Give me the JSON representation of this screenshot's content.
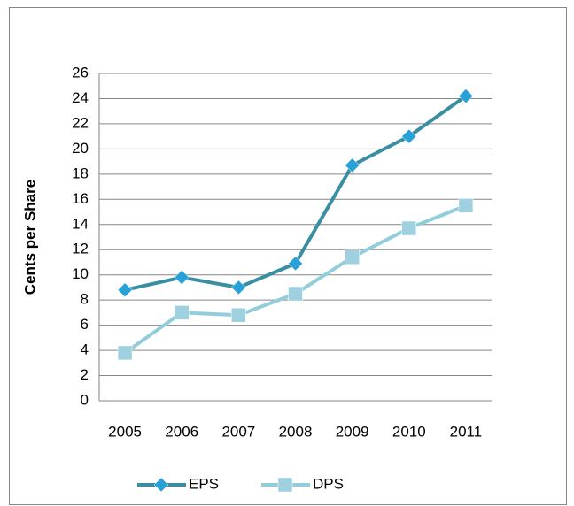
{
  "chart_data": {
    "type": "line",
    "ylabel": "Cents per Share",
    "categories": [
      "2005",
      "2006",
      "2007",
      "2008",
      "2009",
      "2010",
      "2011"
    ],
    "series": [
      {
        "name": "EPS",
        "color": "#3a8ea3",
        "marker_color": "#27a1d8",
        "marker": "diamond",
        "values": [
          8.8,
          9.8,
          9.0,
          10.9,
          18.7,
          21.0,
          24.2
        ]
      },
      {
        "name": "DPS",
        "color": "#92cddc",
        "marker_color": "#9fd0df",
        "marker": "square",
        "values": [
          3.8,
          7.0,
          6.8,
          8.5,
          11.4,
          13.7,
          15.5
        ]
      }
    ],
    "ylim": [
      0,
      26
    ],
    "yticks": [
      0,
      2,
      4,
      6,
      8,
      10,
      12,
      14,
      16,
      18,
      20,
      22,
      24,
      26
    ],
    "grid": true,
    "legend": "bottom"
  }
}
